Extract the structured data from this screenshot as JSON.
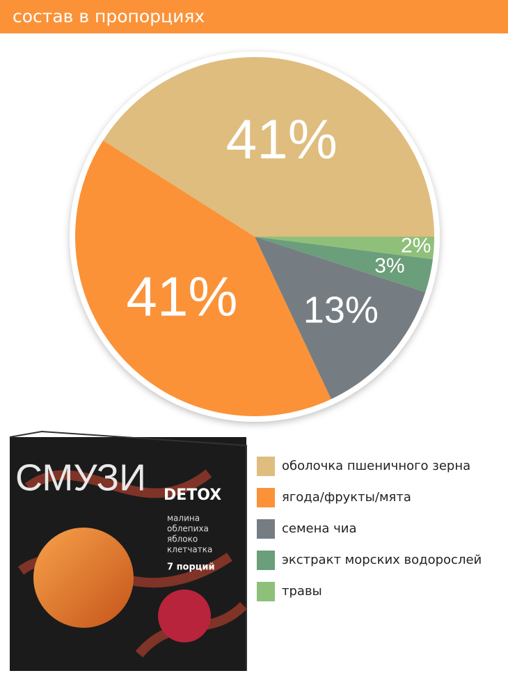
{
  "chart_data": {
    "type": "pie",
    "title": "состав в пропорциях",
    "series": [
      {
        "name": "оболочка пшеничного зерна",
        "color": "#dfbd7e",
        "values": [
          41
        ],
        "value_labels": [
          "41%"
        ]
      },
      {
        "name": "ягода/фрукты/мята",
        "color": "#fb9238",
        "values": [
          41
        ],
        "value_labels": [
          "41%"
        ]
      },
      {
        "name": "семена чиа",
        "color": "#767d82",
        "values": [
          13
        ],
        "value_labels": [
          "13%"
        ]
      },
      {
        "name": "экстракт морских водорослей",
        "color": "#6b9e7a",
        "values": [
          3
        ],
        "value_labels": [
          "3%"
        ]
      },
      {
        "name": "травы",
        "color": "#8fc07a",
        "values": [
          2
        ],
        "value_labels": [
          "2%"
        ]
      }
    ],
    "legend": "right"
  },
  "product": {
    "brand": "СМУЗИ",
    "line": "DETOX",
    "ingredients": [
      "малина",
      "облепиха",
      "яблоко",
      "клетчатка"
    ],
    "portions": "7 порций"
  }
}
